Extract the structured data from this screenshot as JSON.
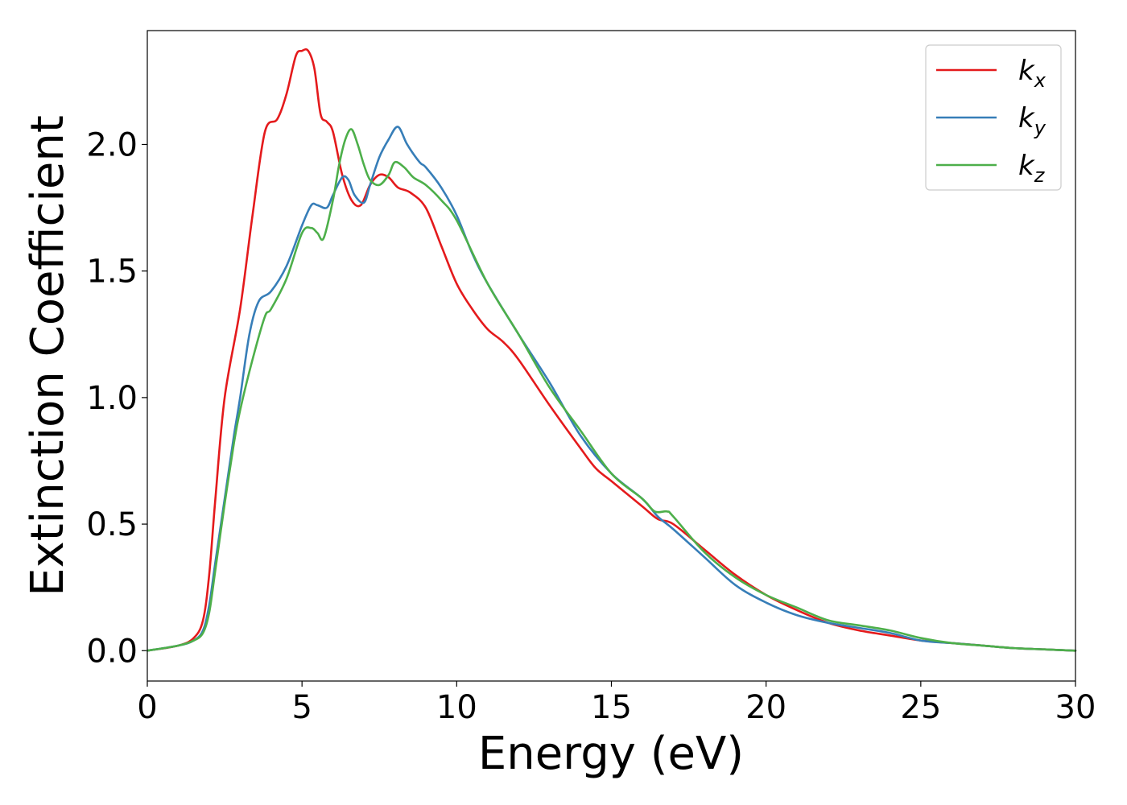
{
  "chart_data": {
    "type": "line",
    "title": "",
    "xlabel": "Energy (eV)",
    "ylabel": "Extinction Coefficient",
    "xlim": [
      0,
      30
    ],
    "ylim": [
      -0.12,
      2.45
    ],
    "xticks": [
      0,
      5,
      10,
      15,
      20,
      25,
      30
    ],
    "xtick_labels": [
      "0",
      "5",
      "10",
      "15",
      "20",
      "25",
      "30"
    ],
    "yticks": [
      0.0,
      0.5,
      1.0,
      1.5,
      2.0
    ],
    "ytick_labels": [
      "0.0",
      "0.5",
      "1.0",
      "1.5",
      "2.0"
    ],
    "grid": false,
    "legend_position": "top-right",
    "series": [
      {
        "name": "k_x",
        "label_main": "k",
        "label_sub": "x",
        "color": "#e41a1c",
        "x": [
          0,
          1,
          1.5,
          1.8,
          2.0,
          2.2,
          2.5,
          3.0,
          3.4,
          3.8,
          4.2,
          4.5,
          4.8,
          5.0,
          5.2,
          5.4,
          5.6,
          5.8,
          6.0,
          6.3,
          6.6,
          6.9,
          7.2,
          7.5,
          7.8,
          8.1,
          8.5,
          9.0,
          9.5,
          10.0,
          10.5,
          11.0,
          11.5,
          12.0,
          13.0,
          14.0,
          14.5,
          15.0,
          16.0,
          16.5,
          17.0,
          18.0,
          19.0,
          20.0,
          21.0,
          22.0,
          23.0,
          24.0,
          25.0,
          26.0,
          27.0,
          28.0,
          29.0,
          30.0
        ],
        "values": [
          0.0,
          0.02,
          0.05,
          0.12,
          0.3,
          0.6,
          1.0,
          1.35,
          1.72,
          2.05,
          2.1,
          2.2,
          2.35,
          2.37,
          2.37,
          2.3,
          2.12,
          2.09,
          2.05,
          1.88,
          1.78,
          1.76,
          1.84,
          1.88,
          1.87,
          1.83,
          1.81,
          1.75,
          1.6,
          1.45,
          1.35,
          1.27,
          1.22,
          1.15,
          0.97,
          0.8,
          0.72,
          0.67,
          0.57,
          0.52,
          0.5,
          0.4,
          0.3,
          0.22,
          0.16,
          0.11,
          0.08,
          0.06,
          0.04,
          0.03,
          0.02,
          0.01,
          0.005,
          0.0
        ]
      },
      {
        "name": "k_y",
        "label_main": "k",
        "label_sub": "y",
        "color": "#377eb8",
        "x": [
          0,
          1,
          1.5,
          1.8,
          2.0,
          2.2,
          2.5,
          2.8,
          3.0,
          3.3,
          3.6,
          4.0,
          4.5,
          5.0,
          5.3,
          5.5,
          5.8,
          6.0,
          6.3,
          6.5,
          6.7,
          7.0,
          7.2,
          7.5,
          7.8,
          8.1,
          8.4,
          8.8,
          9.0,
          9.5,
          10.0,
          10.5,
          11.0,
          12.0,
          13.0,
          14.0,
          15.0,
          16.0,
          16.5,
          17.0,
          18.0,
          19.0,
          20.0,
          21.0,
          22.0,
          23.0,
          24.0,
          25.0,
          26.0,
          27.0,
          28.0,
          29.0,
          30.0
        ],
        "values": [
          0.0,
          0.02,
          0.04,
          0.08,
          0.18,
          0.35,
          0.6,
          0.85,
          1.0,
          1.25,
          1.38,
          1.42,
          1.52,
          1.68,
          1.76,
          1.76,
          1.75,
          1.8,
          1.87,
          1.86,
          1.8,
          1.77,
          1.84,
          1.95,
          2.02,
          2.07,
          2.0,
          1.93,
          1.91,
          1.83,
          1.72,
          1.57,
          1.45,
          1.25,
          1.06,
          0.85,
          0.7,
          0.6,
          0.53,
          0.48,
          0.37,
          0.26,
          0.19,
          0.14,
          0.11,
          0.09,
          0.07,
          0.04,
          0.03,
          0.02,
          0.01,
          0.005,
          0.0
        ]
      },
      {
        "name": "k_z",
        "label_main": "k",
        "label_sub": "z",
        "color": "#4daf4a",
        "x": [
          0,
          1,
          1.5,
          1.8,
          2.0,
          2.2,
          2.5,
          2.8,
          3.0,
          3.4,
          3.8,
          4.0,
          4.5,
          5.0,
          5.3,
          5.5,
          5.7,
          6.0,
          6.2,
          6.4,
          6.6,
          6.8,
          7.0,
          7.2,
          7.5,
          7.8,
          8.0,
          8.3,
          8.6,
          9.0,
          9.5,
          10.0,
          11.0,
          12.0,
          13.0,
          14.0,
          15.0,
          16.0,
          16.4,
          16.8,
          17.0,
          18.0,
          19.0,
          20.0,
          21.0,
          22.0,
          23.0,
          24.0,
          25.0,
          26.0,
          27.0,
          28.0,
          29.0,
          30.0
        ],
        "values": [
          0.0,
          0.02,
          0.04,
          0.07,
          0.15,
          0.32,
          0.58,
          0.82,
          0.95,
          1.15,
          1.32,
          1.35,
          1.47,
          1.65,
          1.67,
          1.65,
          1.63,
          1.78,
          1.92,
          2.02,
          2.06,
          2.0,
          1.92,
          1.86,
          1.84,
          1.88,
          1.93,
          1.91,
          1.87,
          1.84,
          1.78,
          1.7,
          1.45,
          1.25,
          1.04,
          0.87,
          0.7,
          0.6,
          0.55,
          0.55,
          0.53,
          0.39,
          0.29,
          0.22,
          0.17,
          0.12,
          0.1,
          0.08,
          0.05,
          0.03,
          0.02,
          0.01,
          0.005,
          0.0
        ]
      }
    ]
  }
}
